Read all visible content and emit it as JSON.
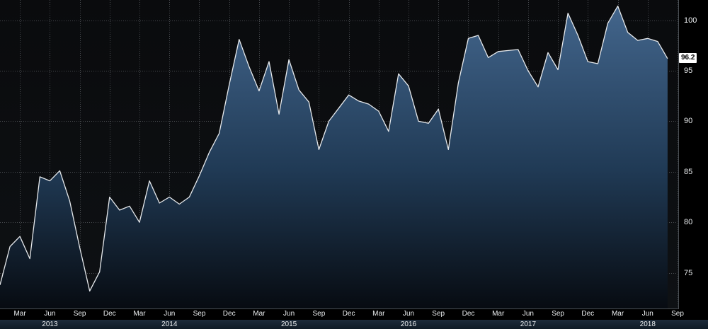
{
  "chart_data": {
    "type": "area",
    "title": "",
    "x_start": "2013-01",
    "x_interval": "monthly",
    "values": [
      73.8,
      77.6,
      78.6,
      76.4,
      84.5,
      84.1,
      85.1,
      82.1,
      77.5,
      73.2,
      75.1,
      82.5,
      81.2,
      81.6,
      80.0,
      84.1,
      81.9,
      82.5,
      81.8,
      82.5,
      84.6,
      86.9,
      88.8,
      93.6,
      98.1,
      95.4,
      93.0,
      95.9,
      90.7,
      96.1,
      93.1,
      91.9,
      87.2,
      90.0,
      91.3,
      92.6,
      92.0,
      91.7,
      91.0,
      89.0,
      94.7,
      93.5,
      90.0,
      89.8,
      91.2,
      87.2,
      93.8,
      98.2,
      98.5,
      96.3,
      96.9,
      97.0,
      97.1,
      95.0,
      93.4,
      96.8,
      95.1,
      100.7,
      98.5,
      95.9,
      95.7,
      99.7,
      101.4,
      98.8,
      98.0,
      98.2,
      97.9,
      96.2
    ],
    "last_value": 96.2,
    "last_value_label": "96.2",
    "ylim": [
      71.4,
      102
    ],
    "y_ticks": [
      75,
      80,
      85,
      90,
      95,
      100
    ],
    "x_ticks": [
      {
        "idx": 2,
        "label": "Mar"
      },
      {
        "idx": 5,
        "label": "Jun"
      },
      {
        "idx": 8,
        "label": "Sep"
      },
      {
        "idx": 11,
        "label": "Dec"
      },
      {
        "idx": 14,
        "label": "Mar"
      },
      {
        "idx": 17,
        "label": "Jun"
      },
      {
        "idx": 20,
        "label": "Sep"
      },
      {
        "idx": 23,
        "label": "Dec"
      },
      {
        "idx": 26,
        "label": "Mar"
      },
      {
        "idx": 29,
        "label": "Jun"
      },
      {
        "idx": 32,
        "label": "Sep"
      },
      {
        "idx": 35,
        "label": "Dec"
      },
      {
        "idx": 38,
        "label": "Mar"
      },
      {
        "idx": 41,
        "label": "Jun"
      },
      {
        "idx": 44,
        "label": "Sep"
      },
      {
        "idx": 47,
        "label": "Dec"
      },
      {
        "idx": 50,
        "label": "Mar"
      },
      {
        "idx": 53,
        "label": "Jun"
      },
      {
        "idx": 56,
        "label": "Sep"
      },
      {
        "idx": 59,
        "label": "Dec"
      },
      {
        "idx": 62,
        "label": "Mar"
      },
      {
        "idx": 65,
        "label": "Jun"
      },
      {
        "idx": 68,
        "label": "Sep"
      }
    ],
    "year_ticks": [
      {
        "idx": 5,
        "label": "2013"
      },
      {
        "idx": 17,
        "label": "2014"
      },
      {
        "idx": 29,
        "label": "2015"
      },
      {
        "idx": 41,
        "label": "2016"
      },
      {
        "idx": 53,
        "label": "2017"
      },
      {
        "idx": 65,
        "label": "2018"
      }
    ],
    "grid": "dotted",
    "legend": "none",
    "colors": {
      "background": "#000000",
      "plot_bg_top": "#0a0b0d",
      "plot_bg_bottom": "#0e1114",
      "line": "#e6e9ec",
      "area_top": "#44678e",
      "area_mid": "#203a55",
      "area_bottom": "#070b11",
      "grid": "#46494d",
      "axis_line": "#4a4f54",
      "axis_text": "#eceff1",
      "year_band_top": "#1d2b3a",
      "year_band_bottom": "#101b26",
      "badge_bg": "#ffffff",
      "badge_text": "#000000"
    }
  }
}
